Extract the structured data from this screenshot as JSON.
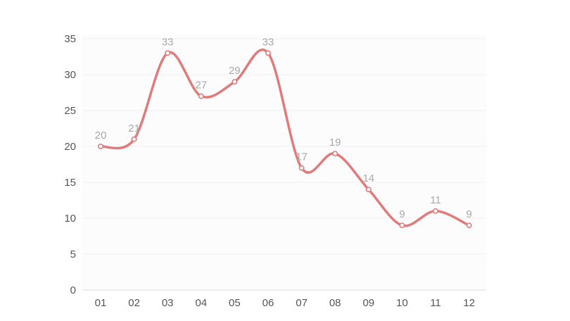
{
  "chart_data": {
    "type": "line",
    "categories": [
      "01",
      "02",
      "03",
      "04",
      "05",
      "06",
      "07",
      "08",
      "09",
      "10",
      "11",
      "12"
    ],
    "series": [
      {
        "values": [
          20,
          21,
          33,
          27,
          29,
          33,
          17,
          19,
          14,
          9,
          11,
          9
        ],
        "color": "#e07b7b"
      }
    ],
    "title": "",
    "xlabel": "",
    "ylabel": "",
    "ylim": [
      0,
      35
    ],
    "yticks": [
      0,
      5,
      10,
      15,
      20,
      25,
      30,
      35
    ],
    "grid": true,
    "smooth": true,
    "data_labels": true,
    "legend": "none",
    "colors": {
      "line": "#e07b7b",
      "tick_label": "#555555",
      "data_label": "#a9a9a9",
      "grid": "#f1eef2"
    }
  }
}
